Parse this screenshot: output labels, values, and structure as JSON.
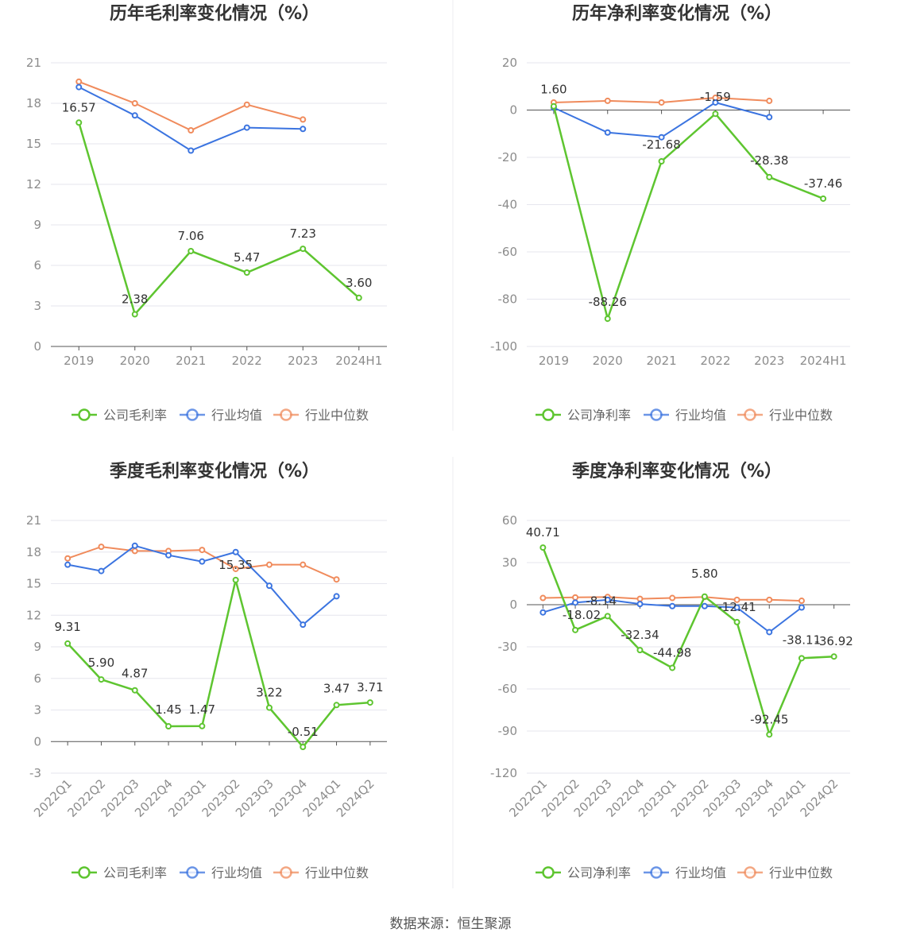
{
  "source": "数据来源：恒生聚源",
  "legend_labels": {
    "industry_avg": "行业均值",
    "industry_median": "行业中位数"
  },
  "colors": {
    "company": "#5ec530",
    "industry_avg": "#3b74e0",
    "industry_median": "#f08b5c",
    "grid": "#e6e6ee",
    "axis": "#555555"
  },
  "chart_data": [
    {
      "type": "line",
      "title": "历年毛利率变化情况（%）",
      "categories": [
        "2019",
        "2020",
        "2021",
        "2022",
        "2023",
        "2024H1"
      ],
      "ylim": [
        0,
        21
      ],
      "yticks": [
        0,
        3,
        6,
        9,
        12,
        15,
        18,
        21
      ],
      "series": [
        {
          "name": "公司毛利率",
          "key": "company",
          "values": [
            16.57,
            2.38,
            7.06,
            5.47,
            7.23,
            3.6
          ],
          "labels": [
            "16.57",
            "2.38",
            "7.06",
            "5.47",
            "7.23",
            "3.60"
          ]
        },
        {
          "name": "行业均值",
          "key": "industry_avg",
          "values": [
            19.2,
            17.1,
            14.5,
            16.2,
            16.1,
            null
          ]
        },
        {
          "name": "行业中位数",
          "key": "industry_median",
          "values": [
            19.6,
            18.0,
            16.0,
            17.9,
            16.8,
            null
          ]
        }
      ]
    },
    {
      "type": "line",
      "title": "历年净利率变化情况（%）",
      "categories": [
        "2019",
        "2020",
        "2021",
        "2022",
        "2023",
        "2024H1"
      ],
      "ylim": [
        -100,
        20
      ],
      "yticks": [
        -100,
        -80,
        -60,
        -40,
        -20,
        0,
        20
      ],
      "series": [
        {
          "name": "公司净利率",
          "key": "company",
          "values": [
            1.6,
            -88.26,
            -21.68,
            -1.59,
            -28.38,
            -37.46
          ],
          "labels": [
            "1.60",
            "-88.26",
            "-21.68",
            "-1.59",
            "-28.38",
            "-37.46"
          ]
        },
        {
          "name": "行业均值",
          "key": "industry_avg",
          "values": [
            1.0,
            -9.5,
            -11.5,
            3.2,
            -3.0,
            null
          ]
        },
        {
          "name": "行业中位数",
          "key": "industry_median",
          "values": [
            3.2,
            3.9,
            3.2,
            5.2,
            3.9,
            null
          ]
        }
      ]
    },
    {
      "type": "line",
      "title": "季度毛利率变化情况（%）",
      "categories": [
        "2022Q1",
        "2022Q2",
        "2022Q3",
        "2022Q4",
        "2023Q1",
        "2023Q2",
        "2023Q3",
        "2023Q4",
        "2024Q1",
        "2024Q2"
      ],
      "ylim": [
        -3,
        21
      ],
      "yticks": [
        -3,
        0,
        3,
        6,
        9,
        12,
        15,
        18,
        21
      ],
      "series": [
        {
          "name": "公司毛利率",
          "key": "company",
          "values": [
            9.31,
            5.9,
            4.87,
            1.45,
            1.47,
            15.35,
            3.22,
            -0.51,
            3.47,
            3.71
          ],
          "labels": [
            "9.31",
            "5.90",
            "4.87",
            "1.45",
            "1.47",
            "15.35",
            "3.22",
            "-0.51",
            "3.47",
            "3.71"
          ]
        },
        {
          "name": "行业均值",
          "key": "industry_avg",
          "values": [
            16.8,
            16.2,
            18.6,
            17.7,
            17.1,
            18.0,
            14.8,
            11.1,
            13.8,
            null
          ]
        },
        {
          "name": "行业中位数",
          "key": "industry_median",
          "values": [
            17.4,
            18.5,
            18.1,
            18.1,
            18.2,
            16.4,
            16.8,
            16.8,
            15.4,
            null
          ]
        }
      ]
    },
    {
      "type": "line",
      "title": "季度净利率变化情况（%）",
      "categories": [
        "2022Q1",
        "2022Q2",
        "2022Q3",
        "2022Q4",
        "2023Q1",
        "2023Q2",
        "2023Q3",
        "2023Q4",
        "2024Q1",
        "2024Q2"
      ],
      "ylim": [
        -120,
        60
      ],
      "yticks": [
        -120,
        -90,
        -60,
        -30,
        0,
        30,
        60
      ],
      "series": [
        {
          "name": "公司净利率",
          "key": "company",
          "values": [
            40.71,
            -18.02,
            -8.14,
            -32.34,
            -44.98,
            5.8,
            -12.41,
            -92.45,
            -38.11,
            -36.92
          ],
          "labels": [
            "40.71",
            "-18.02",
            "-8.14",
            "-32.34",
            "-44.98",
            "5.80",
            "-12.41",
            "-92.45",
            "-38.11",
            "-36.92"
          ]
        },
        {
          "name": "行业均值",
          "key": "industry_avg",
          "values": [
            -5.5,
            1.5,
            3.5,
            0.5,
            -1.0,
            -1.0,
            -2.0,
            -19.5,
            -2.0,
            null
          ]
        },
        {
          "name": "行业中位数",
          "key": "industry_median",
          "values": [
            4.8,
            5.2,
            5.5,
            4.2,
            4.8,
            5.5,
            3.5,
            3.5,
            2.8,
            null
          ]
        }
      ]
    }
  ]
}
